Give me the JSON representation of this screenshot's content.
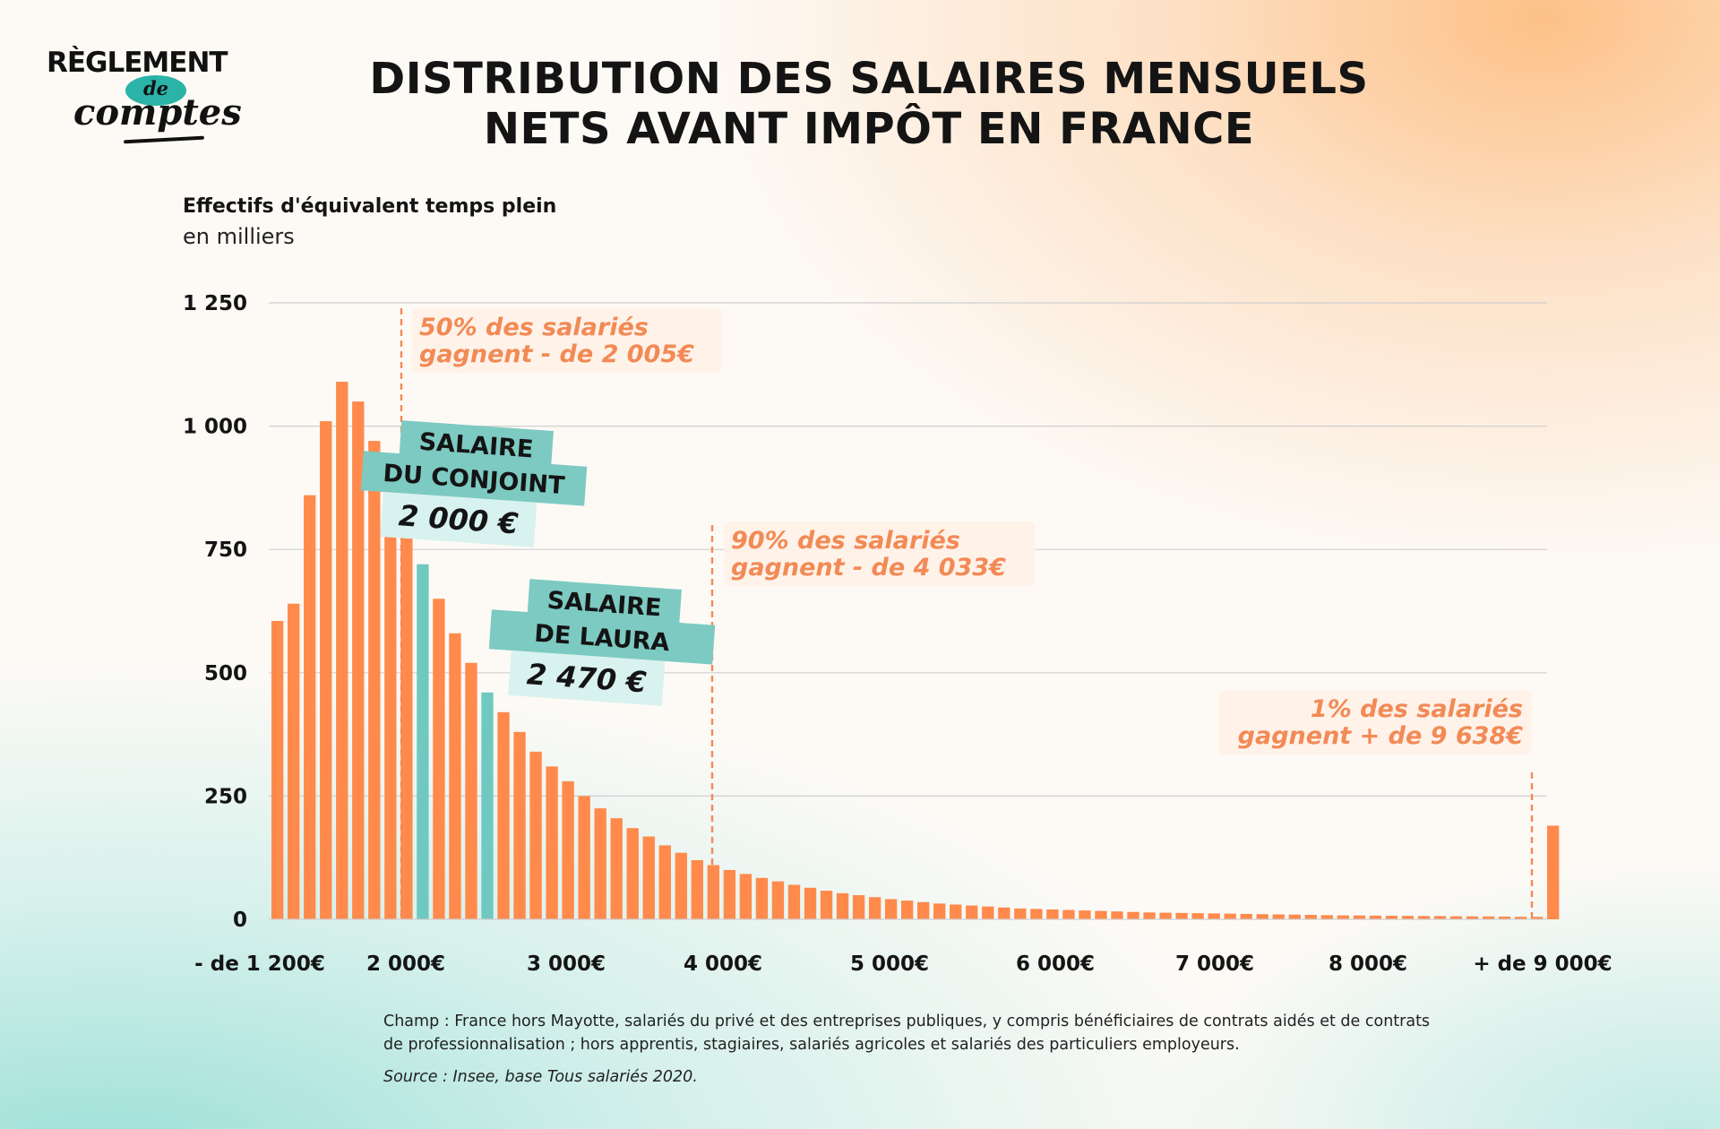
{
  "logo": {
    "top": "RÈGLEMENT",
    "middle": "de",
    "bottom": "comptes"
  },
  "title": {
    "line1": "DISTRIBUTION DES SALAIRES MENSUELS",
    "line2": "NETS AVANT IMPÔT EN FRANCE"
  },
  "colors": {
    "bar": "#ff8a4c",
    "highlight": "#6fc9c0",
    "annotation": "#f28a55",
    "label_bg": "#7dcac2"
  },
  "chart_data": {
    "type": "bar",
    "ylabel": "Effectifs d'équivalent temps plein",
    "yunit": "en milliers",
    "ylim": [
      0,
      1250
    ],
    "yticks": [
      0,
      250,
      500,
      750,
      1000,
      1250
    ],
    "ytick_labels": [
      "0",
      "250",
      "500",
      "750",
      "1 000",
      "1 250"
    ],
    "xtick_labels": [
      "- de 1 200€",
      "2 000€",
      "3 000€",
      "4 000€",
      "5 000€",
      "6 000€",
      "7 000€",
      "8 000€",
      "+  de 9 000€"
    ],
    "grid": true,
    "values": [
      605,
      640,
      860,
      1010,
      1090,
      1050,
      970,
      900,
      850,
      720,
      650,
      580,
      520,
      460,
      420,
      380,
      340,
      310,
      280,
      250,
      225,
      205,
      185,
      168,
      150,
      135,
      120,
      110,
      100,
      92,
      84,
      77,
      70,
      64,
      58,
      53,
      49,
      45,
      41,
      38,
      35,
      32,
      30,
      28,
      26,
      24,
      22,
      21,
      20,
      19,
      18,
      17,
      16,
      15,
      14,
      13.5,
      13,
      12.5,
      12,
      11.5,
      11,
      10.5,
      10,
      9.5,
      9,
      8.5,
      8,
      7.8,
      7.5,
      7.2,
      7,
      6.7,
      6.5,
      6.2,
      6,
      5.8,
      5.5,
      5.2,
      5,
      190
    ],
    "highlight_indices": [
      9,
      13
    ],
    "markers": [
      {
        "label_line1": "50% des salariés",
        "label_line2": "gagnent - de 2 005€"
      },
      {
        "label_line1": "90% des salariés",
        "label_line2": "gagnent - de 4 033€"
      },
      {
        "label_line1": "1% des salariés",
        "label_line2": "gagnent + de 9 638€"
      }
    ],
    "callouts": [
      {
        "line1": "SALAIRE",
        "line2": "DU CONJOINT",
        "amount": "2 000 €"
      },
      {
        "line1": "SALAIRE",
        "line2": "DE LAURA",
        "amount": "2 470 €"
      }
    ]
  },
  "footnote": "Champ : France hors Mayotte, salariés du privé et des entreprises publiques, y compris bénéficiaires de contrats aidés et de contrats de professionnalisation ; hors apprentis, stagiaires, salariés agricoles et salariés des particuliers employeurs.",
  "source": "Source : Insee, base Tous salariés 2020."
}
